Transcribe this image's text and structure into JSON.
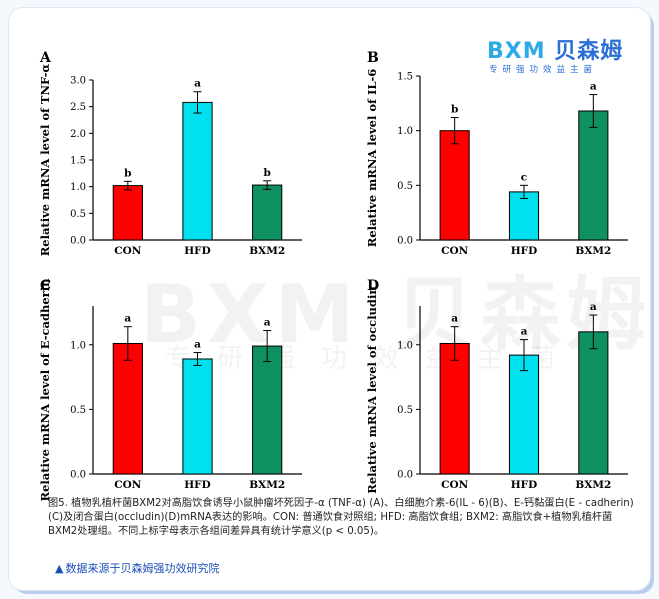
{
  "logo": {
    "brand_latin": "BXM",
    "brand_cn": "贝森姆",
    "tagline": "专研强功效益主菌"
  },
  "watermark": {
    "main": "BXM 贝森姆",
    "sub": "专研强功效益主菌"
  },
  "colors": {
    "CON": "#ff0000",
    "HFD": "#00e0ee",
    "BXM2": "#0f9060"
  },
  "chart_data": [
    {
      "type": "bar",
      "panel": "A",
      "categories": [
        "CON",
        "HFD",
        "BXM2"
      ],
      "values": [
        1.02,
        2.58,
        1.03
      ],
      "errors": [
        0.08,
        0.2,
        0.08
      ],
      "letters": [
        "b",
        "a",
        "b"
      ],
      "ylabel": "Relative mRNA level of TNF-α",
      "ylim": [
        0,
        3.0
      ],
      "yticks": [
        "0.0",
        "0.5",
        "1.0",
        "1.5",
        "2.0",
        "2.5",
        "3.0"
      ]
    },
    {
      "type": "bar",
      "panel": "B",
      "categories": [
        "CON",
        "HFD",
        "BXM2"
      ],
      "values": [
        1.0,
        0.44,
        1.18
      ],
      "errors": [
        0.12,
        0.06,
        0.15
      ],
      "letters": [
        "b",
        "c",
        "a"
      ],
      "ylabel": "Relative mRNA level of IL-6",
      "ylim": [
        0,
        1.5
      ],
      "yticks": [
        "0.0",
        "0.5",
        "1.0",
        "1.5"
      ]
    },
    {
      "type": "bar",
      "panel": "C",
      "categories": [
        "CON",
        "HFD",
        "BXM2"
      ],
      "values": [
        1.01,
        0.89,
        0.99
      ],
      "errors": [
        0.13,
        0.05,
        0.12
      ],
      "letters": [
        "a",
        "a",
        "a"
      ],
      "ylabel": "Relative mRNA level of E-cadherin",
      "ylim": [
        0,
        1.3
      ],
      "yticks": [
        "0.0",
        "0.5",
        "1.0"
      ]
    },
    {
      "type": "bar",
      "panel": "D",
      "categories": [
        "CON",
        "HFD",
        "BXM2"
      ],
      "values": [
        1.01,
        0.92,
        1.1
      ],
      "errors": [
        0.13,
        0.12,
        0.13
      ],
      "letters": [
        "a",
        "a",
        "a"
      ],
      "ylabel": "Relative mRNA level of occludin",
      "ylim": [
        0,
        1.3
      ],
      "yticks": [
        "0.0",
        "0.5",
        "1.0"
      ]
    }
  ],
  "caption": "图5. 植物乳植杆菌BXM2对高脂饮食诱导小鼠肿瘤坏死因子-α (TNF-α) (A)、白细胞介素-6(IL - 6)(B)、E-钙黏蛋白(E - cadherin)(C)及闭合蛋白(occludin)(D)mRNA表达的影响。CON: 普通饮食对照组; HFD: 高脂饮食组; BXM2: 高脂饮食+植物乳植杆菌BXM2处理组。不同上标字母表示各组间差异具有统计学意义(p < 0.05)。",
  "source": "数据来源于贝森姆强功效研究院"
}
